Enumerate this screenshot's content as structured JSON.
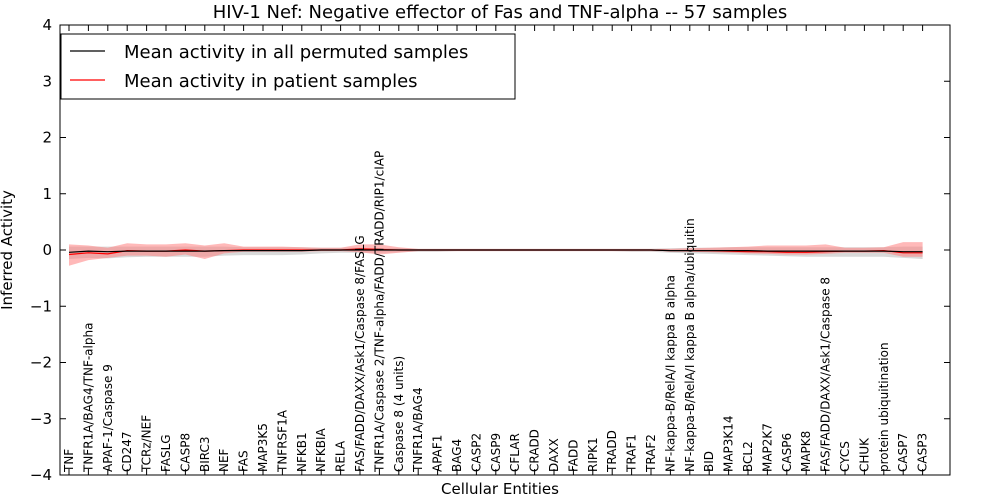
{
  "chart_data": {
    "type": "line",
    "title": "HIV-1 Nef: Negative effector of Fas and TNF-alpha -- 57 samples",
    "xlabel": "Cellular Entities",
    "ylabel": "Inferred Activity",
    "ylim": [
      -4,
      4
    ],
    "yticks": [
      4,
      3,
      2,
      1,
      0,
      -1,
      -2,
      -3,
      -4
    ],
    "ytick_labels": [
      "4",
      "3",
      "2",
      "1",
      "0",
      "−1",
      "−2",
      "−3",
      "−4"
    ],
    "legend_position": "top-left",
    "grid": false,
    "categories": [
      "TNF",
      "TNFR1A/BAG4/TNF-alpha",
      "APAF-1/Caspase 9",
      "CD247",
      "TCRz/NEF",
      "FASLG",
      "CASP8",
      "BIRC3",
      "NEF",
      "FAS",
      "MAP3K5",
      "TNFRSF1A",
      "NFKB1",
      "NFKBIA",
      "RELA",
      "FAS/FADD/DAXX/Ask1/Caspase 8/FASLG",
      "TNFR1A/Caspase 2/TNF-alpha/FADD/TRADD/RIP1/cIAP",
      "Caspase 8 (4 units)",
      "TNFR1A/BAG4",
      "APAF1",
      "BAG4",
      "CASP2",
      "CASP9",
      "CFLAR",
      "CRADD",
      "DAXX",
      "FADD",
      "RIPK1",
      "TRADD",
      "TRAF1",
      "TRAF2",
      "NF-kappa-B/RelA/I kappa B alpha",
      "NF-kappa-B/RelA/I kappa B alpha/ubiquitin",
      "BID",
      "MAP3K14",
      "BCL2",
      "MAP2K7",
      "CASP6",
      "MAPK8",
      "FAS/FADD/DAXX/Ask1/Caspase 8",
      "CYCS",
      "CHUK",
      "protein ubiquitination",
      "CASP7",
      "CASP3"
    ],
    "series": [
      {
        "name": "Mean activity in all permuted samples",
        "color": "#000000",
        "values": [
          -0.04,
          -0.02,
          -0.03,
          -0.02,
          -0.02,
          -0.02,
          -0.02,
          -0.02,
          -0.01,
          -0.01,
          -0.01,
          -0.01,
          -0.01,
          0.0,
          0.0,
          0.0,
          0.0,
          0.0,
          0.0,
          0.0,
          0.0,
          0.0,
          0.0,
          0.0,
          0.0,
          0.0,
          0.0,
          0.0,
          0.0,
          0.0,
          0.0,
          -0.01,
          -0.01,
          -0.01,
          -0.01,
          -0.01,
          -0.02,
          -0.02,
          -0.02,
          -0.02,
          -0.02,
          -0.02,
          -0.02,
          -0.03,
          -0.03
        ],
        "band_low": [
          -0.16,
          -0.14,
          -0.15,
          -0.13,
          -0.12,
          -0.12,
          -0.12,
          -0.12,
          -0.1,
          -0.09,
          -0.09,
          -0.09,
          -0.08,
          -0.06,
          -0.05,
          -0.05,
          -0.05,
          -0.04,
          -0.03,
          -0.03,
          -0.02,
          -0.02,
          -0.02,
          -0.02,
          -0.02,
          -0.02,
          -0.02,
          -0.02,
          -0.02,
          -0.03,
          -0.03,
          -0.05,
          -0.06,
          -0.07,
          -0.08,
          -0.09,
          -0.1,
          -0.11,
          -0.12,
          -0.12,
          -0.12,
          -0.12,
          -0.12,
          -0.14,
          -0.16
        ],
        "band_high": [
          0.06,
          0.06,
          0.06,
          0.06,
          0.06,
          0.06,
          0.06,
          0.06,
          0.06,
          0.05,
          0.05,
          0.05,
          0.05,
          0.04,
          0.04,
          0.04,
          0.03,
          0.03,
          0.02,
          0.02,
          0.02,
          0.02,
          0.02,
          0.02,
          0.02,
          0.02,
          0.02,
          0.02,
          0.02,
          0.02,
          0.02,
          0.03,
          0.04,
          0.04,
          0.05,
          0.05,
          0.05,
          0.05,
          0.05,
          0.05,
          0.05,
          0.05,
          0.05,
          0.06,
          0.06
        ],
        "band_color": "#bfbfbf"
      },
      {
        "name": "Mean activity in patient samples",
        "color": "#ff0000",
        "values": [
          -0.08,
          -0.05,
          -0.07,
          -0.01,
          -0.02,
          -0.02,
          0.0,
          -0.02,
          -0.01,
          0.0,
          0.0,
          0.0,
          0.0,
          0.0,
          0.0,
          0.02,
          0.01,
          0.0,
          0.0,
          0.0,
          0.0,
          0.0,
          0.0,
          0.0,
          0.0,
          0.0,
          0.0,
          0.0,
          0.0,
          0.0,
          0.0,
          -0.01,
          -0.01,
          -0.01,
          -0.02,
          -0.03,
          -0.03,
          -0.04,
          -0.04,
          -0.03,
          -0.02,
          -0.02,
          -0.01,
          -0.05,
          -0.05
        ],
        "band_low": [
          -0.28,
          -0.18,
          -0.14,
          -0.1,
          -0.1,
          -0.12,
          -0.08,
          -0.16,
          -0.06,
          -0.03,
          -0.03,
          -0.03,
          -0.03,
          -0.02,
          -0.02,
          -0.04,
          -0.08,
          -0.05,
          -0.02,
          -0.02,
          -0.02,
          -0.02,
          -0.02,
          -0.02,
          -0.02,
          -0.02,
          -0.02,
          -0.02,
          -0.02,
          -0.02,
          -0.02,
          -0.02,
          -0.03,
          -0.04,
          -0.05,
          -0.06,
          -0.07,
          -0.08,
          -0.08,
          -0.07,
          -0.05,
          -0.05,
          -0.05,
          -0.12,
          -0.12
        ],
        "band_high": [
          0.1,
          0.08,
          0.04,
          0.12,
          0.1,
          0.1,
          0.12,
          0.08,
          0.12,
          0.06,
          0.06,
          0.06,
          0.05,
          0.04,
          0.04,
          0.1,
          0.1,
          0.05,
          0.02,
          0.02,
          0.02,
          0.02,
          0.02,
          0.02,
          0.02,
          0.02,
          0.02,
          0.02,
          0.02,
          0.02,
          0.02,
          0.02,
          0.03,
          0.04,
          0.05,
          0.06,
          0.08,
          0.08,
          0.08,
          0.1,
          0.04,
          0.04,
          0.05,
          0.14,
          0.14
        ],
        "band_color": "#ff7f7f"
      }
    ]
  }
}
